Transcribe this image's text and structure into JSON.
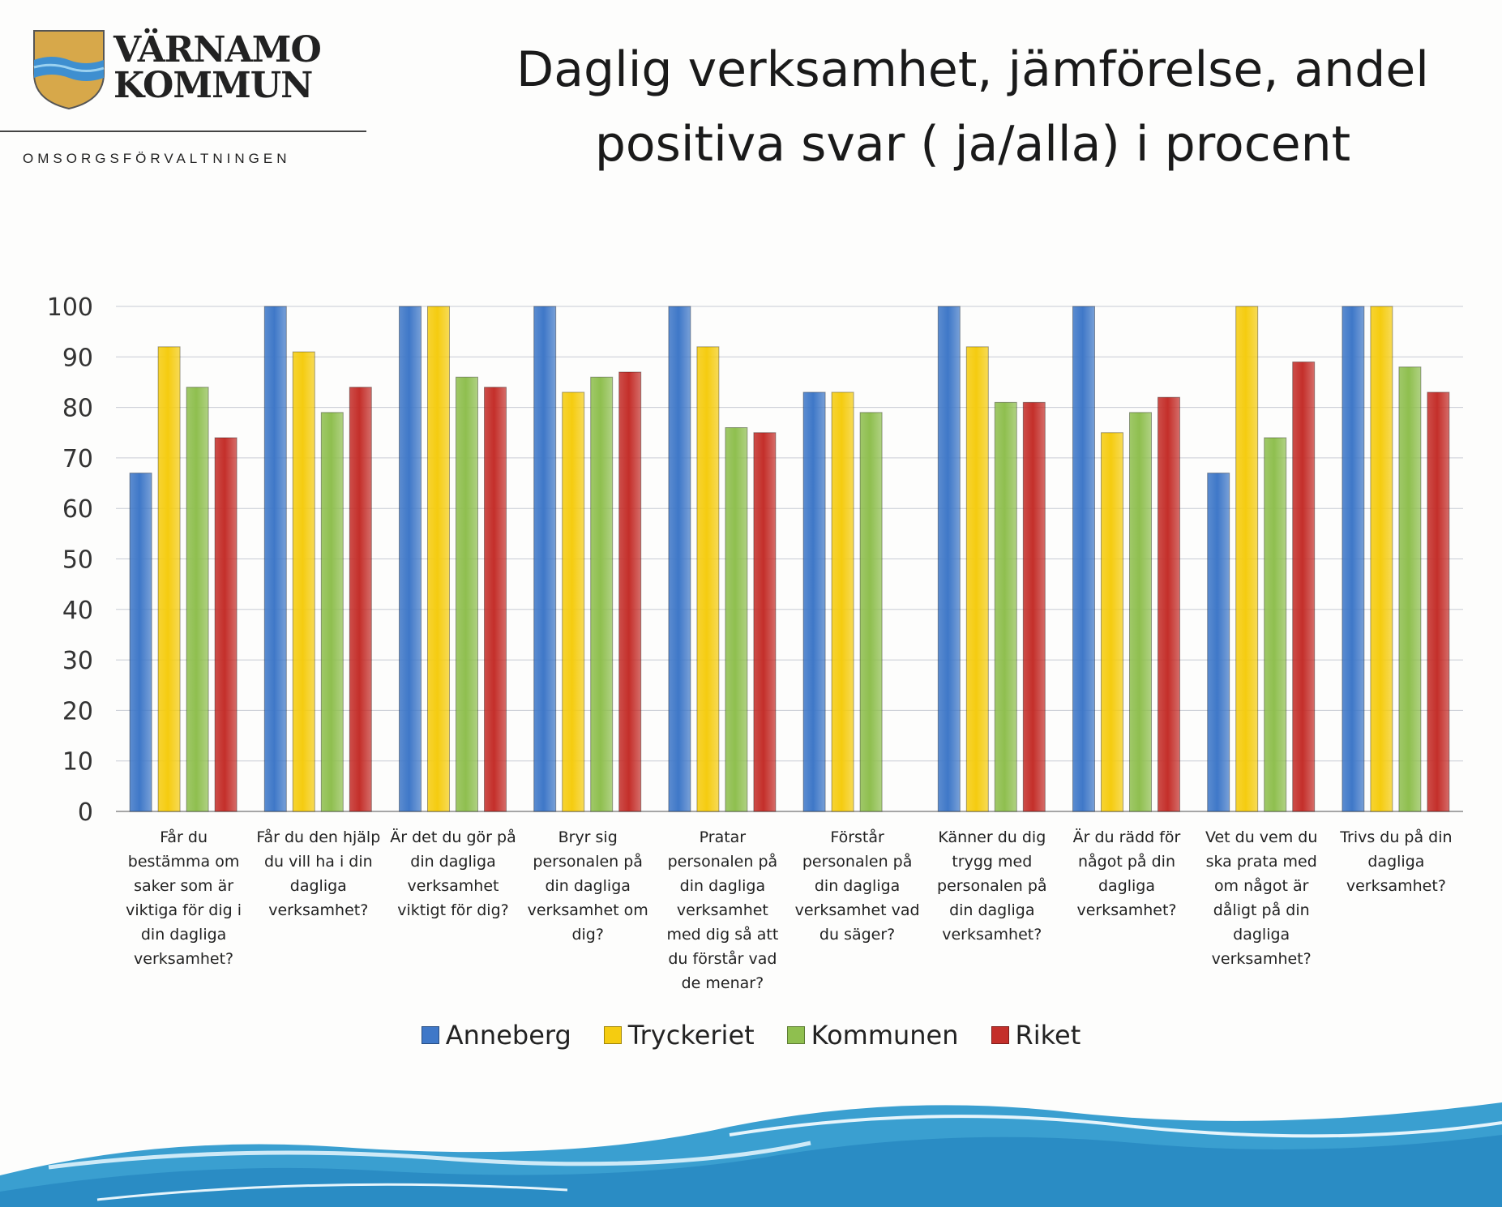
{
  "header": {
    "logo_line1": "VÄRNAMO",
    "logo_line2": "KOMMUN",
    "department": "OMSORGSFÖRVALTNINGEN"
  },
  "chart_data": {
    "type": "bar",
    "title": "Daglig verksamhet, jämförelse, andel positiva svar ( ja/alla) i procent",
    "ylim": [
      0,
      100
    ],
    "yticks": [
      0,
      10,
      20,
      30,
      40,
      50,
      60,
      70,
      80,
      90,
      100
    ],
    "grid": true,
    "legend_position": "bottom",
    "categories": [
      "Får du bestämma om saker som är viktiga för dig i din dagliga verksamhet?",
      "Får du den hjälp du vill ha i din dagliga verksamhet?",
      "Är det du gör på din dagliga verksamhet viktigt för dig?",
      "Bryr sig personalen på din dagliga verksamhet om dig?",
      "Pratar personalen på din dagliga verksamhet med dig så att du förstår vad de menar?",
      "Förstår personalen på din dagliga verksamhet vad du säger?",
      "Känner du dig trygg med personalen på din dagliga verksamhet?",
      "Är du rädd för något på din dagliga verksamhet?",
      "Vet du vem du ska prata med om något är dåligt på din dagliga verksamhet?",
      "Trivs du på din dagliga verksamhet?"
    ],
    "category_lines": [
      [
        "Får du",
        "bestämma om",
        "saker som är",
        "viktiga för dig i",
        "din dagliga",
        "verksamhet?"
      ],
      [
        "Får du den hjälp",
        "du vill ha i din",
        "dagliga",
        "verksamhet?"
      ],
      [
        "Är det du gör på",
        "din dagliga",
        "verksamhet",
        "viktigt för dig?"
      ],
      [
        "Bryr sig",
        "personalen på",
        "din dagliga",
        "verksamhet om",
        "dig?"
      ],
      [
        "Pratar",
        "personalen på",
        "din dagliga",
        "verksamhet",
        "med dig så att",
        "du förstår vad",
        "de menar?"
      ],
      [
        "Förstår",
        "personalen på",
        "din dagliga",
        "verksamhet vad",
        "du säger?"
      ],
      [
        "Känner du dig",
        "trygg med",
        "personalen på",
        "din dagliga",
        "verksamhet?"
      ],
      [
        "Är du rädd för",
        "något på din",
        "dagliga",
        "verksamhet?"
      ],
      [
        "Vet du vem du",
        "ska prata med",
        "om något är",
        "dåligt på din",
        "dagliga",
        "verksamhet?"
      ],
      [
        "Trivs du på din",
        "dagliga",
        "verksamhet?"
      ]
    ],
    "series": [
      {
        "name": "Anneberg",
        "color": "#3f78c8",
        "values": [
          67,
          100,
          100,
          100,
          100,
          83,
          100,
          100,
          67,
          100
        ]
      },
      {
        "name": "Tryckeriet",
        "color": "#f5cc10",
        "values": [
          92,
          91,
          100,
          83,
          92,
          83,
          92,
          75,
          100,
          100
        ]
      },
      {
        "name": "Kommunen",
        "color": "#8fbf4f",
        "values": [
          84,
          79,
          86,
          86,
          76,
          79,
          81,
          79,
          74,
          88
        ]
      },
      {
        "name": "Riket",
        "color": "#c42f2a",
        "values": [
          74,
          84,
          84,
          87,
          75,
          null,
          81,
          82,
          89,
          83
        ]
      }
    ]
  }
}
